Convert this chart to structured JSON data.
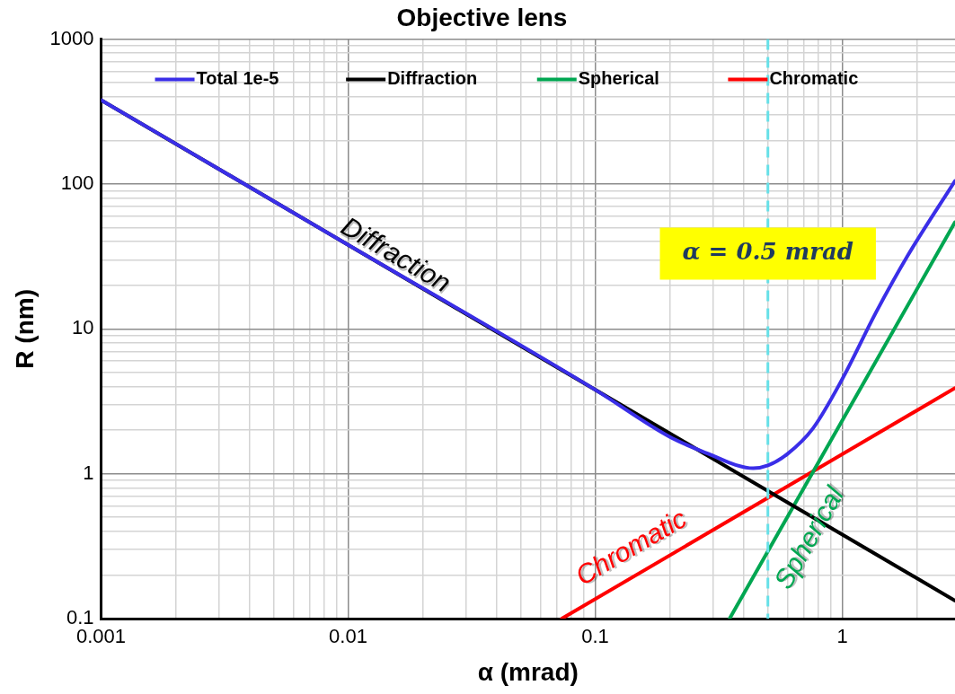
{
  "chart_data": {
    "type": "line",
    "title": "Objective lens",
    "xlabel": "α (mrad)",
    "ylabel": "R (nm)",
    "log": "xy",
    "grid": true,
    "legend": "top",
    "line_style": "solid",
    "xlim": [
      0.001,
      2.86
    ],
    "ylim": [
      0.1,
      1000
    ],
    "xticks": [
      0.001,
      {
        "value": 0.002,
        "label": null
      },
      {
        "value": 0.003,
        "label": null
      },
      {
        "value": 0.004,
        "label": null
      },
      {
        "value": 0.005,
        "label": null
      },
      {
        "value": 0.006,
        "label": null
      },
      {
        "value": 0.007,
        "label": null
      },
      {
        "value": 0.008,
        "label": null
      },
      {
        "value": 0.009,
        "label": null
      },
      0.01,
      {
        "value": 0.02,
        "label": null
      },
      {
        "value": 0.03,
        "label": null
      },
      {
        "value": 0.04,
        "label": null
      },
      {
        "value": 0.05,
        "label": null
      },
      {
        "value": 0.06,
        "label": null
      },
      {
        "value": 0.07,
        "label": null
      },
      {
        "value": 0.08,
        "label": null
      },
      {
        "value": 0.09,
        "label": null
      },
      0.1,
      {
        "value": 0.2,
        "label": null
      },
      {
        "value": 0.3,
        "label": null
      },
      {
        "value": 0.4,
        "label": null
      },
      {
        "value": 0.5,
        "label": null
      },
      {
        "value": 0.6,
        "label": null
      },
      {
        "value": 0.7,
        "label": null
      },
      {
        "value": 0.8,
        "label": null
      },
      {
        "value": 0.9,
        "label": null
      },
      1,
      {
        "value": 2,
        "label": null
      }
    ],
    "yticks": [
      0.1,
      {
        "value": 0.2,
        "label": null
      },
      {
        "value": 0.3,
        "label": null
      },
      {
        "value": 0.4,
        "label": null
      },
      {
        "value": 0.5,
        "label": null
      },
      {
        "value": 0.6,
        "label": null
      },
      {
        "value": 0.7,
        "label": null
      },
      {
        "value": 0.8,
        "label": null
      },
      {
        "value": 0.9,
        "label": null
      },
      1,
      {
        "value": 2,
        "label": null
      },
      {
        "value": 3,
        "label": null
      },
      {
        "value": 4,
        "label": null
      },
      {
        "value": 5,
        "label": null
      },
      {
        "value": 6,
        "label": null
      },
      {
        "value": 7,
        "label": null
      },
      {
        "value": 8,
        "label": null
      },
      {
        "value": 9,
        "label": null
      },
      10,
      {
        "value": 20,
        "label": null
      },
      {
        "value": 30,
        "label": null
      },
      {
        "value": 40,
        "label": null
      },
      {
        "value": 50,
        "label": null
      },
      {
        "value": 60,
        "label": null
      },
      {
        "value": 70,
        "label": null
      },
      {
        "value": 80,
        "label": null
      },
      {
        "value": 90,
        "label": null
      },
      100,
      {
        "value": 200,
        "label": null
      },
      {
        "value": 300,
        "label": null
      },
      {
        "value": 400,
        "label": null
      },
      {
        "value": 500,
        "label": null
      },
      {
        "value": 600,
        "label": null
      },
      {
        "value": 700,
        "label": null
      },
      {
        "value": 800,
        "label": null
      },
      {
        "value": 900,
        "label": null
      },
      1000
    ],
    "series": [
      {
        "name": "Total 1e-5",
        "color": "#3a2ee8",
        "x": [
          0.001,
          0.01,
          0.1,
          0.2,
          0.3,
          0.37,
          0.436,
          0.5,
          0.6,
          0.76,
          1.0,
          1.37,
          1.84,
          2.86
        ],
        "values": [
          380,
          38,
          3.8,
          1.8,
          1.33,
          1.15,
          1.09,
          1.14,
          1.37,
          2.05,
          4.5,
          13,
          32,
          105
        ]
      },
      {
        "name": "Diffraction",
        "color": "#000000",
        "x": [
          0.001,
          2.86
        ],
        "values": [
          380,
          0.133
        ]
      },
      {
        "name": "Spherical",
        "color": "#00a651",
        "x": [
          0.35,
          2.86
        ],
        "values": [
          0.1,
          54.5
        ]
      },
      {
        "name": "Chromatic",
        "color": "#ff0000",
        "x": [
          0.0733,
          2.86
        ],
        "values": [
          0.1,
          3.9
        ]
      }
    ],
    "ref_lines": [
      {
        "axis": "x",
        "value": 0.5,
        "label": "α = 0.5 mrad",
        "color": "#66e0e8",
        "line_style": "dashed"
      }
    ],
    "annotations": [
      "Diffraction",
      "Chromatic",
      "Spherical"
    ]
  }
}
